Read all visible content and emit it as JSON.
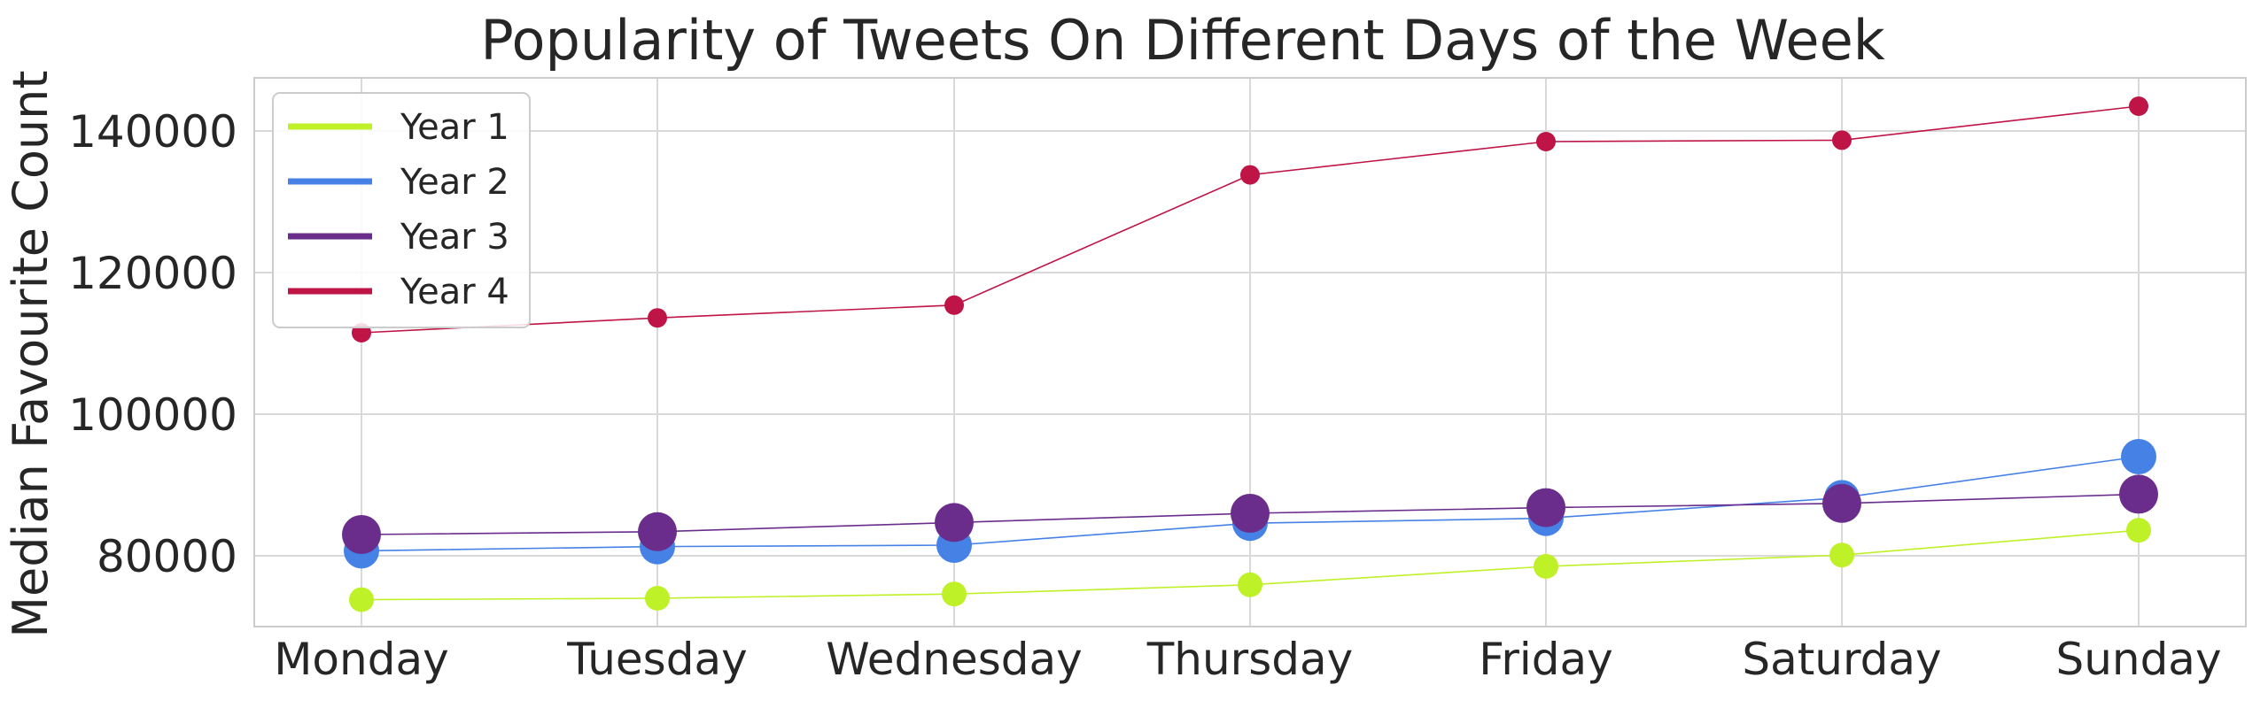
{
  "chart_data": {
    "type": "line",
    "title": "Popularity of Tweets On Different Days of the Week",
    "xlabel": "",
    "ylabel": "Median Favourite Count",
    "categories": [
      "Monday",
      "Tuesday",
      "Wednesday",
      "Thursday",
      "Friday",
      "Saturday",
      "Sunday"
    ],
    "ylim": [
      70000,
      147500
    ],
    "yticks": [
      80000,
      100000,
      120000,
      140000
    ],
    "ytick_labels": [
      "80000",
      "100000",
      "120000",
      "140000"
    ],
    "grid": true,
    "legend_position": "upper-left",
    "series": [
      {
        "name": "Year 1",
        "color": "#bff128",
        "values": [
          73800,
          74000,
          74600,
          75900,
          78500,
          80100,
          83600
        ]
      },
      {
        "name": "Year 2",
        "color": "#4682e6",
        "values": [
          80700,
          81300,
          81500,
          84600,
          85300,
          88200,
          94000
        ]
      },
      {
        "name": "Year 3",
        "color": "#6a2d8c",
        "values": [
          83000,
          83400,
          84700,
          86000,
          86800,
          87400,
          88700
        ]
      },
      {
        "name": "Year 4",
        "color": "#be1446",
        "values": [
          111500,
          113600,
          115400,
          133800,
          138500,
          138700,
          143500
        ]
      }
    ]
  }
}
